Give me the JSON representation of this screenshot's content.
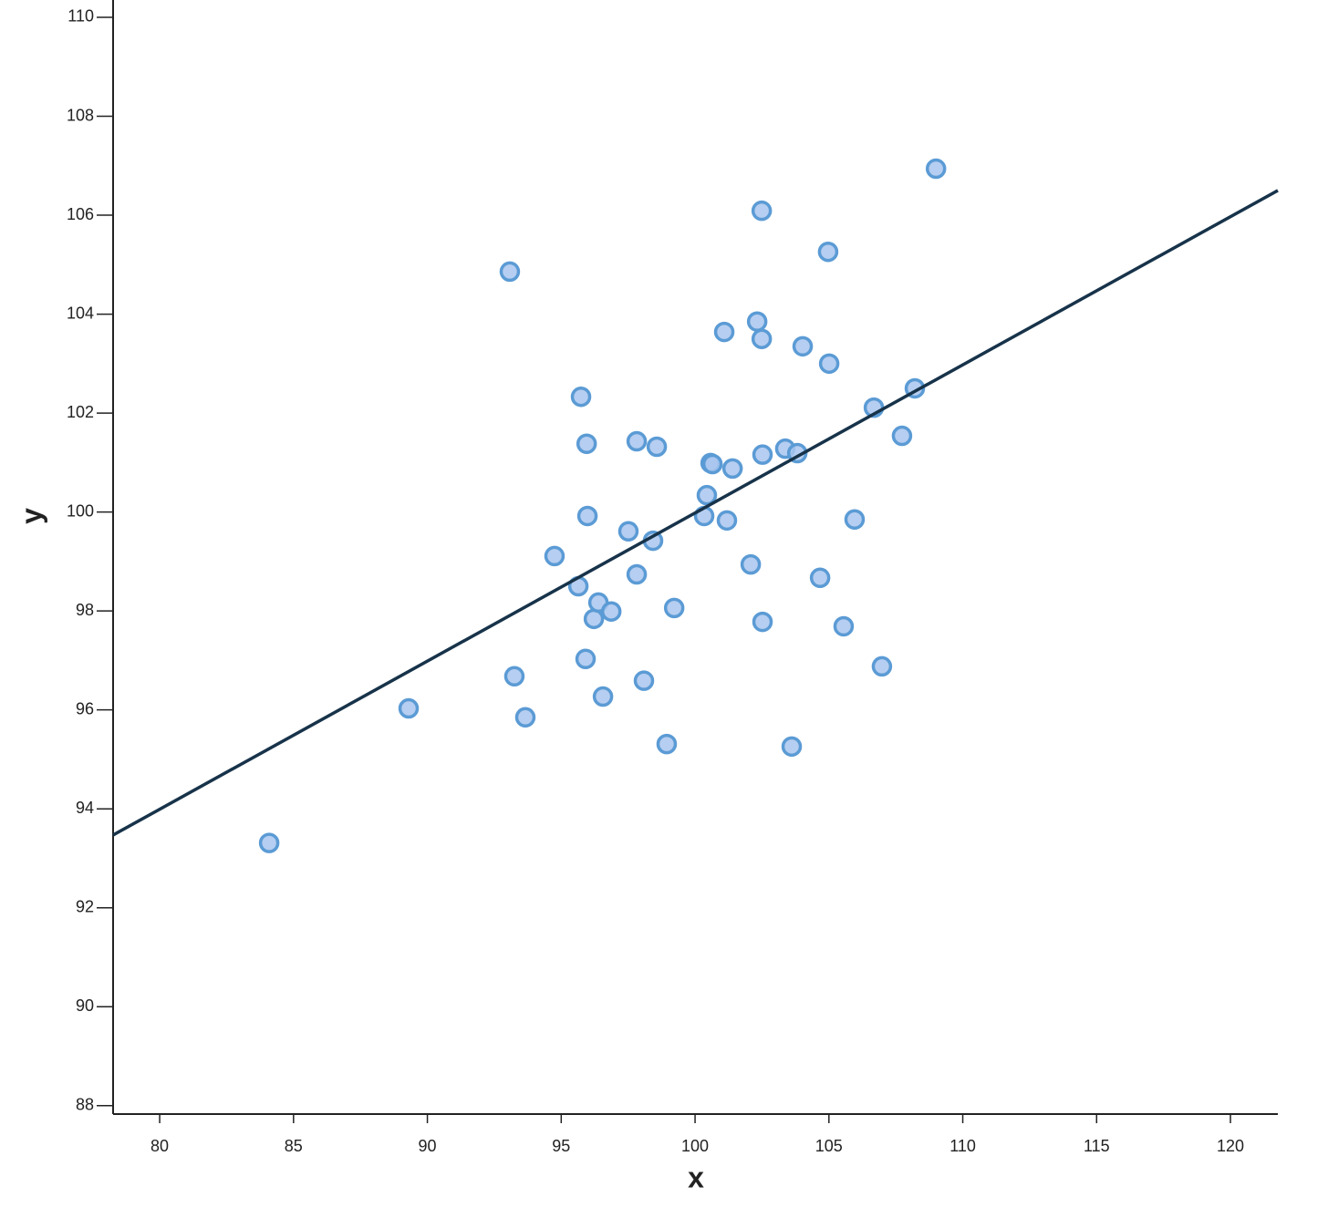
{
  "chart_data": {
    "type": "scatter",
    "x_label": "x",
    "y_label": "y",
    "x": [
      84.09,
      89.3,
      93.08,
      93.25,
      93.66,
      94.75,
      95.64,
      95.74,
      95.95,
      95.98,
      95.91,
      96.22,
      96.39,
      96.56,
      96.87,
      97.51,
      97.82,
      97.82,
      98.09,
      98.43,
      98.57,
      98.94,
      99.22,
      100.34,
      100.44,
      100.58,
      100.65,
      101.09,
      101.19,
      101.4,
      102.08,
      102.32,
      102.49,
      102.49,
      102.52,
      102.52,
      103.37,
      103.61,
      103.82,
      104.02,
      104.67,
      104.97,
      105.01,
      105.55,
      105.96,
      106.68,
      106.98,
      107.73,
      108.21,
      109.0
    ],
    "values": [
      93.31,
      96.03,
      104.86,
      96.68,
      95.85,
      99.11,
      98.5,
      102.33,
      101.38,
      99.92,
      97.03,
      97.84,
      98.17,
      96.27,
      97.99,
      99.61,
      101.43,
      98.74,
      96.59,
      99.42,
      101.32,
      95.31,
      98.06,
      99.92,
      100.34,
      100.99,
      100.97,
      103.64,
      99.83,
      100.88,
      98.94,
      103.85,
      106.09,
      103.5,
      101.16,
      97.78,
      101.28,
      95.26,
      101.19,
      103.35,
      98.67,
      105.26,
      103.0,
      97.69,
      99.85,
      102.11,
      96.88,
      101.54,
      102.5,
      106.94
    ],
    "color": "#a9c6ee",
    "edge_color": "#5b9bd5",
    "fit": {
      "x": [
        78.26,
        121.77
      ],
      "values": [
        93.47,
        106.5
      ],
      "color": "#17334a"
    },
    "xlim": [
      78.26,
      121.77
    ],
    "ylim": [
      87.83,
      110.35
    ],
    "xticks": [
      80,
      85,
      90,
      95,
      100,
      105,
      110,
      115,
      120
    ],
    "yticks": [
      88,
      90,
      92,
      94,
      96,
      98,
      100,
      102,
      104,
      106,
      108,
      110
    ]
  }
}
